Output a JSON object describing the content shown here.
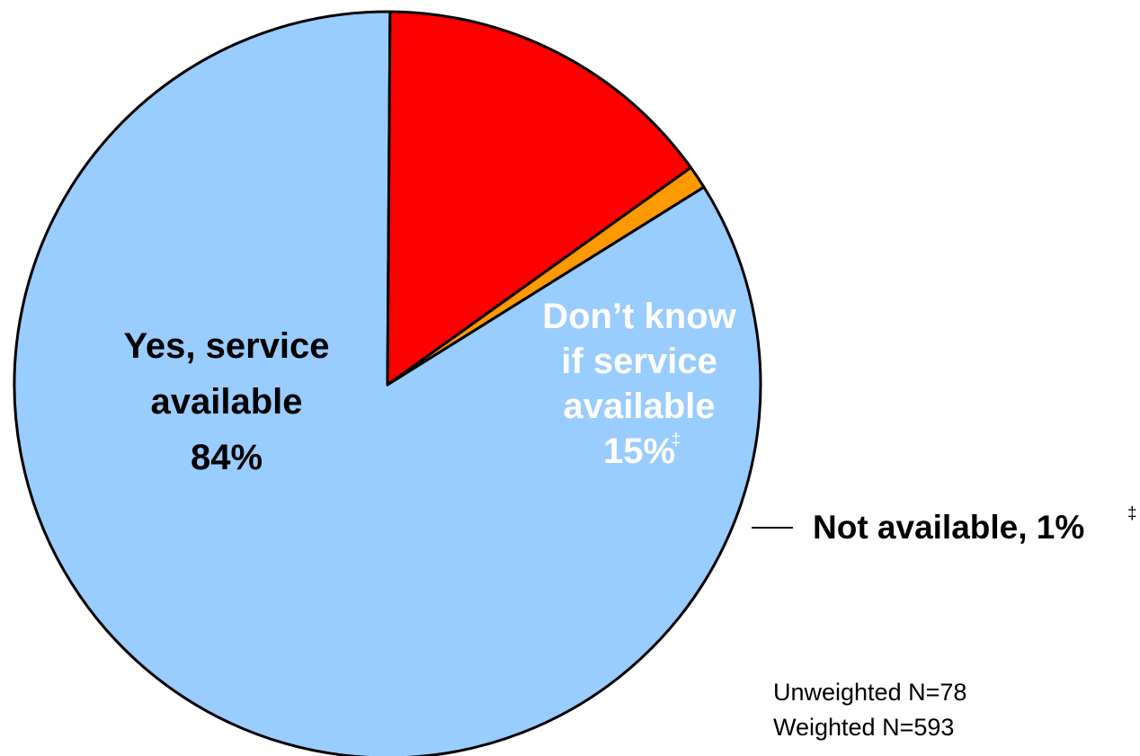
{
  "chart_data": {
    "type": "pie",
    "slices": [
      {
        "label_lines": [
          "Yes, service",
          "available",
          "84%"
        ],
        "value": 84,
        "color": "#99ccff",
        "label_color": "#000000",
        "marker": ""
      },
      {
        "label_lines": [
          "Don’t know",
          "if service",
          "available",
          "15%"
        ],
        "value": 15,
        "color": "#ff0000",
        "label_color": "#ffffff",
        "marker": "‡"
      },
      {
        "label_lines": [
          "Not available, 1%"
        ],
        "value": 1,
        "color": "#ff9900",
        "label_color": "#000000",
        "marker": "‡"
      }
    ],
    "notes": [
      "Unweighted N=78",
      "Weighted N=593"
    ],
    "legend": "none"
  }
}
